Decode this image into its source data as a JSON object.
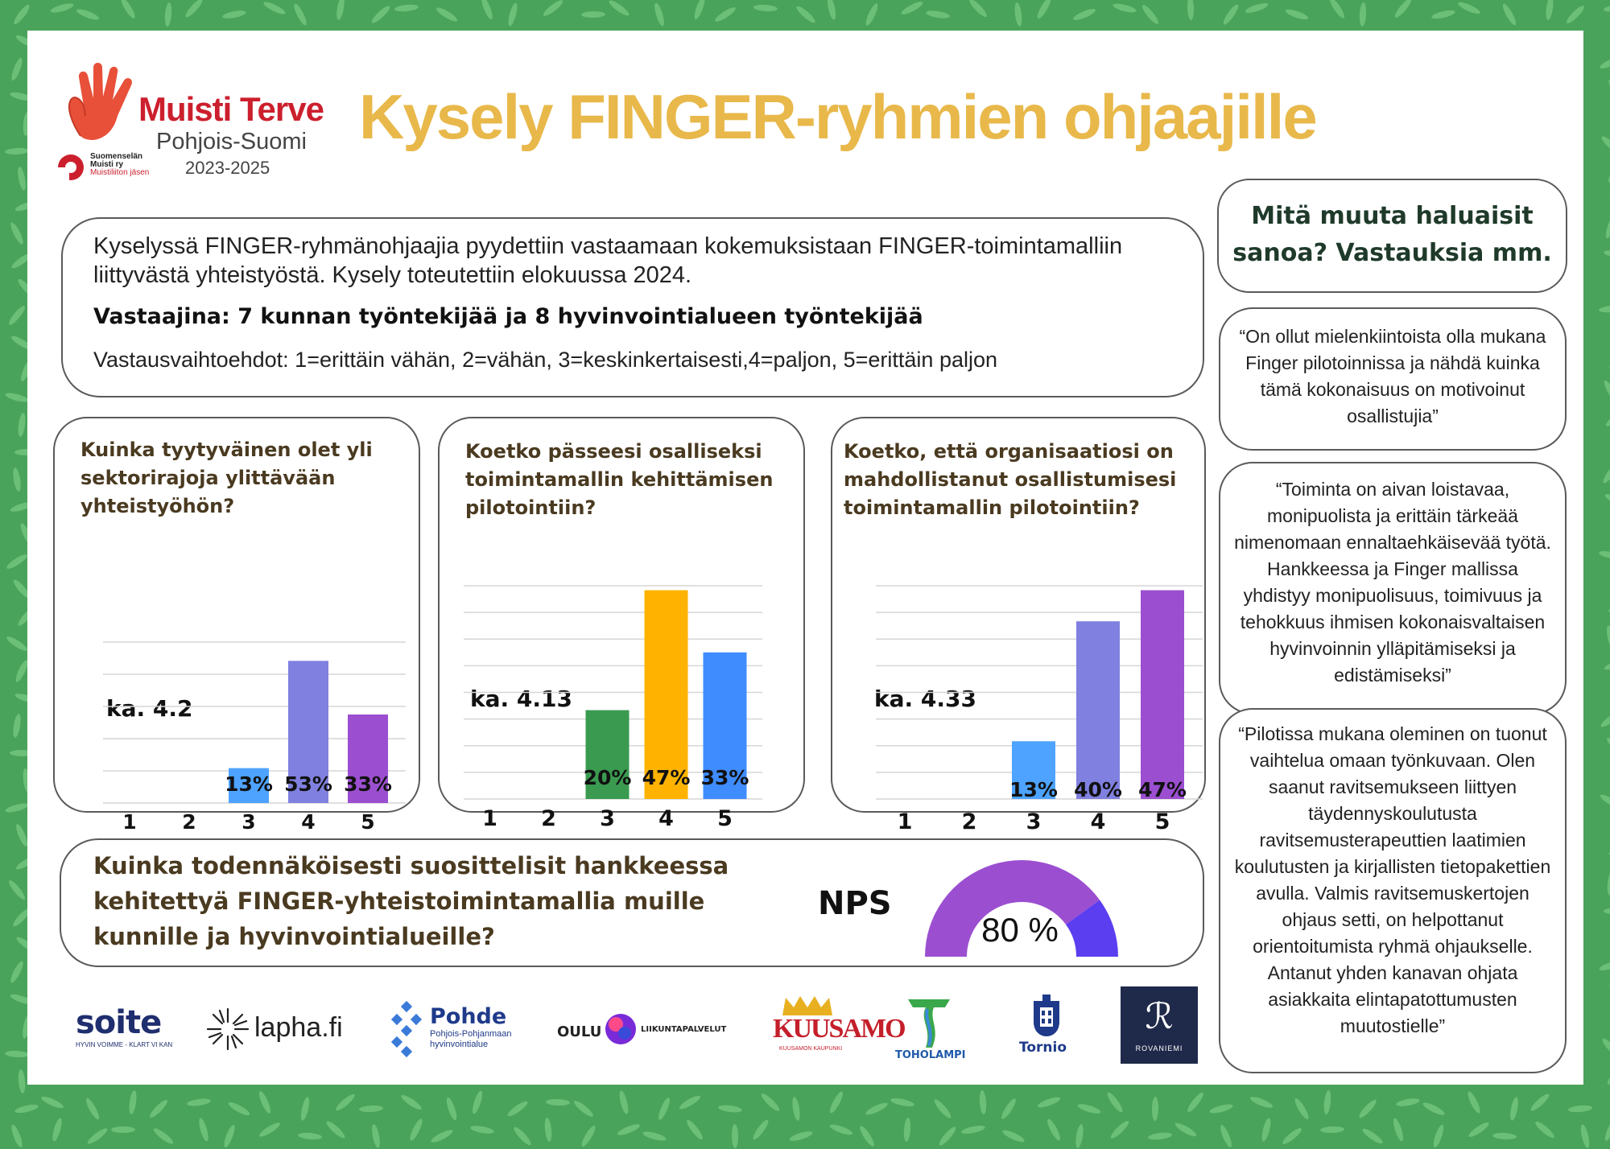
{
  "header": {
    "brand_name": "Muisti Terve",
    "brand_region": "Pohjois-Suomi",
    "brand_years": "2023-2025",
    "sponsor_line1": "Suomenselän",
    "sponsor_line2": "Muisti ry",
    "sponsor_line3": "Muistiliiton jäsen",
    "title": "Kysely FINGER-ryhmien ohjaajille"
  },
  "intro": {
    "text": "Kyselyssä FINGER-ryhmänohjaajia pyydettiin vastaamaan kokemuksistaan FINGER-toimintamalliin liittyvästä yhteistyöstä. Kysely toteutettiin elokuussa 2024.",
    "respondents": "Vastaajina: 7 kunnan työntekijää ja 8 hyvinvointialueen työntekijää",
    "scale": "Vastausvaihtoehdot: 1=erittäin vähän, 2=vähän, 3=keskinkertaisesti,4=paljon, 5=erittäin paljon"
  },
  "chart_data": [
    {
      "type": "bar",
      "title": "Kuinka tyytyväinen olet yli sektorirajoja ylittävään yhteistyöhön?",
      "average_label": "ka. 4.2",
      "categories": [
        "1",
        "2",
        "3",
        "4",
        "5"
      ],
      "values": [
        0,
        0,
        13,
        53,
        33
      ],
      "value_labels": [
        "",
        "",
        "13%",
        "53%",
        "33%"
      ],
      "colors": [
        "#4da3ff",
        "#4da3ff",
        "#4da3ff",
        "#8080e0",
        "#9b4fd0"
      ],
      "ylim": [
        0,
        60
      ],
      "grid": true
    },
    {
      "type": "bar",
      "title": "Koetko pässeesi osalliseksi toimintamallin kehittämisen pilotointiin?",
      "average_label": "ka. 4.13",
      "categories": [
        "1",
        "2",
        "3",
        "4",
        "5"
      ],
      "values": [
        0,
        0,
        20,
        47,
        33
      ],
      "value_labels": [
        "",
        "",
        "20%",
        "47%",
        "33%"
      ],
      "colors": [
        "#3a9a50",
        "#3a9a50",
        "#3a9a50",
        "#ffb300",
        "#3f8cff"
      ],
      "ylim": [
        0,
        48
      ],
      "grid": true
    },
    {
      "type": "bar",
      "title": "Koetko, että organisaatiosi on mahdollistanut osallistumisesi toimintamallin pilotointiin?",
      "average_label": "ka. 4.33",
      "categories": [
        "1",
        "2",
        "3",
        "4",
        "5"
      ],
      "values": [
        0,
        0,
        13,
        40,
        47
      ],
      "value_labels": [
        "",
        "",
        "13%",
        "40%",
        "47%"
      ],
      "colors": [
        "#4da3ff",
        "#4da3ff",
        "#4da3ff",
        "#8080e0",
        "#9b4fd0"
      ],
      "ylim": [
        0,
        48
      ],
      "grid": true
    }
  ],
  "nps": {
    "question": "Kuinka todennäköisesti suosittelisit hankkeessa kehitettyä FINGER-yhteistoimintamallia muille kunnille ja hyvinvointialueille?",
    "label": "NPS",
    "value_text": "80 %",
    "value": 80,
    "fill_color": "#9b4fd0",
    "rest_color": "#5b3ef0"
  },
  "sidebar": {
    "heading": "Mitä muuta haluaisit sanoa?  Vastauksia mm.",
    "quotes": [
      "“On ollut mielenkiintoista olla mukana Finger pilotoinnissa ja nähdä kuinka tämä kokonaisuus on motivoinut osallistujia”",
      "“Toiminta on aivan loistavaa, monipuolista ja erittäin tärkeää nimenomaan ennaltaehkäisevää työtä. Hankkeessa ja Finger mallissa yhdistyy monipuolisuus, toimivuus ja tehokkuus ihmisen kokonaisvaltaisen hyvinvoinnin ylläpitämiseksi ja edistämiseksi”",
      "“Pilotissa mukana oleminen on tuonut vaihtelua omaan työnkuvaan. Olen saanut ravitsemukseen liittyen täydennyskoulutusta ravitsemusterapeuttien laatimien koulutusten ja kirjallisten tietopakettien avulla. Valmis ravitsemuskertojen ohjaus setti, on helpottanut orientoitumista ryhmä ohjaukselle. Antanut yhden kanavan ohjata asiakkaita elintapatottumusten muutostielle”"
    ]
  },
  "partners": {
    "soite": "soite",
    "soite_sub": "HYVIN VOIMME - KLART VI KAN",
    "lapha": "lapha.fi",
    "pohde": "Pohde",
    "pohde_sub1": "Pohjois-Pohjanmaan",
    "pohde_sub2": "hyvinvointialue",
    "oulu": "OULU",
    "oulu_sub": "LIIKUNTAPALVELUT",
    "kuusamo": "KUUSAMO",
    "kuusamo_sub": "KUUSAMON KAUPUNKI",
    "toholampi": "TOHOLAMPI",
    "tornio": "Tornio",
    "rovaniemi": "ROVANIEMI"
  }
}
